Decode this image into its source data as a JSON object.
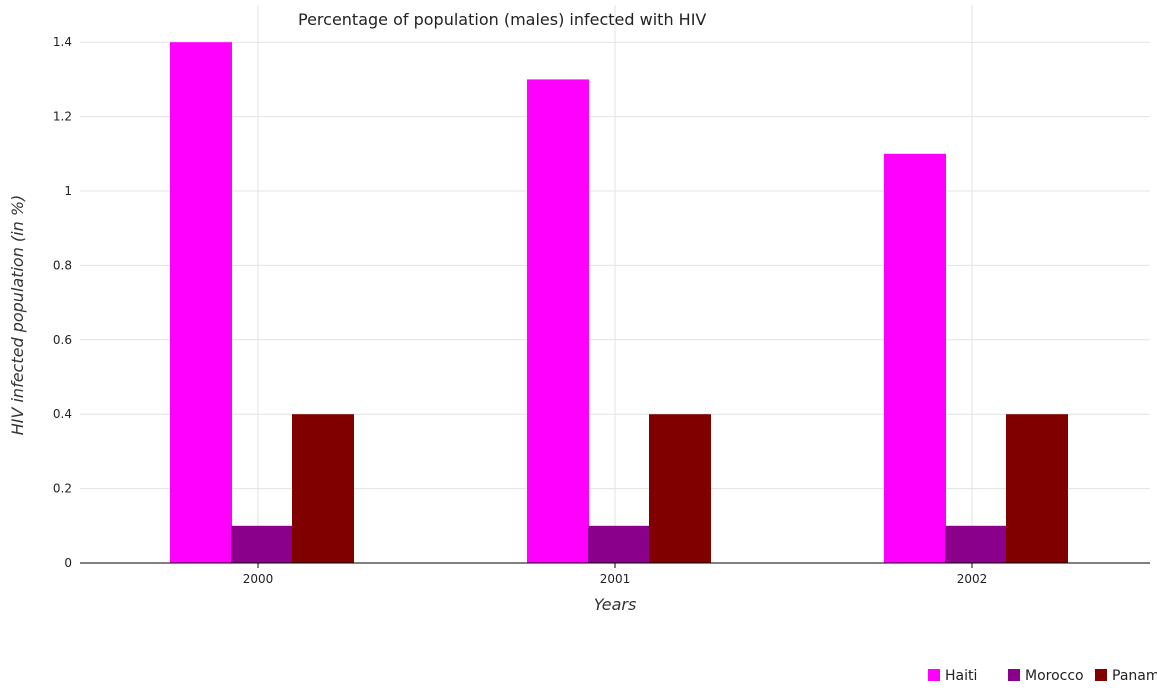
{
  "chart_data": {
    "type": "bar",
    "title": "Percentage of population (males) infected with HIV",
    "xlabel": "Years",
    "ylabel": "HIV infected population (in %)",
    "categories": [
      "2000",
      "2001",
      "2002"
    ],
    "series": [
      {
        "name": "Haiti",
        "color": "#ff00ff",
        "values": [
          1.4,
          1.3,
          1.1
        ]
      },
      {
        "name": "Morocco",
        "color": "#8b008b",
        "values": [
          0.1,
          0.1,
          0.1
        ]
      },
      {
        "name": "Panama",
        "color": "#800000",
        "values": [
          0.4,
          0.4,
          0.4
        ]
      }
    ],
    "ylim": [
      0,
      1.5
    ],
    "yticks": [
      "0",
      "0.2",
      "0.4",
      "0.6",
      "0.8",
      "1",
      "1.2",
      "1.4"
    ],
    "grid": true,
    "legend": "bottom-right"
  }
}
